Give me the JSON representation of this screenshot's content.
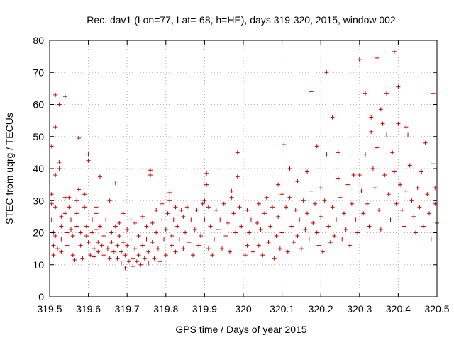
{
  "chart_data": {
    "type": "scatter",
    "title": "Rec. dav1 (Lon=77, Lat=-68, h=HE), days 319-320, 2015, window 002",
    "xlabel": "GPS time / Days of year 2015",
    "ylabel": "STEC from uqrg / TECUs",
    "xlim": [
      319.5,
      320.5
    ],
    "ylim": [
      0,
      80
    ],
    "x_ticks": [
      "319.5",
      "319.6",
      "319.7",
      "319.8",
      "319.9",
      "320",
      "320.1",
      "320.2",
      "320.3",
      "320.4",
      "320.5"
    ],
    "y_ticks": [
      "0",
      "10",
      "20",
      "30",
      "40",
      "50",
      "60",
      "70",
      "80"
    ],
    "grid": true,
    "marker": "+",
    "color": "#cc0000",
    "series": [
      {
        "points": [
          [
            319.505,
            47
          ],
          [
            319.505,
            32
          ],
          [
            319.505,
            29
          ],
          [
            319.505,
            24
          ],
          [
            319.51,
            20
          ],
          [
            319.51,
            16
          ],
          [
            319.51,
            13
          ],
          [
            319.515,
            63
          ],
          [
            319.515,
            53
          ],
          [
            319.515,
            38
          ],
          [
            319.515,
            28
          ],
          [
            319.515,
            19
          ],
          [
            319.52,
            15
          ],
          [
            319.525,
            60
          ],
          [
            319.525,
            42
          ],
          [
            319.525,
            40
          ],
          [
            319.53,
            25
          ],
          [
            319.53,
            22
          ],
          [
            319.53,
            18
          ],
          [
            319.53,
            14
          ],
          [
            319.54,
            62.5
          ],
          [
            319.54,
            31
          ],
          [
            319.54,
            26
          ],
          [
            319.545,
            20
          ],
          [
            319.545,
            16
          ],
          [
            319.55,
            31
          ],
          [
            319.55,
            28
          ],
          [
            319.555,
            24
          ],
          [
            319.555,
            21
          ],
          [
            319.56,
            19
          ],
          [
            319.56,
            13
          ],
          [
            319.565,
            11.5
          ],
          [
            319.57,
            30
          ],
          [
            319.57,
            26
          ],
          [
            319.57,
            22
          ],
          [
            319.575,
            49.5
          ],
          [
            319.575,
            33.5
          ],
          [
            319.58,
            20
          ],
          [
            319.58,
            16
          ],
          [
            319.585,
            12
          ],
          [
            319.59,
            32
          ],
          [
            319.59,
            28
          ],
          [
            319.595,
            22
          ],
          [
            319.595,
            19
          ],
          [
            319.6,
            44.5
          ],
          [
            319.6,
            42.5
          ],
          [
            319.6,
            17
          ],
          [
            319.605,
            13
          ],
          [
            319.61,
            24
          ],
          [
            319.61,
            20
          ],
          [
            319.615,
            15
          ],
          [
            319.615,
            12.5
          ],
          [
            319.62,
            28
          ],
          [
            319.62,
            26
          ],
          [
            319.62,
            21
          ],
          [
            319.625,
            17
          ],
          [
            319.625,
            14
          ],
          [
            319.63,
            37.5
          ],
          [
            319.63,
            22
          ],
          [
            319.635,
            16
          ],
          [
            319.64,
            19
          ],
          [
            319.64,
            13
          ],
          [
            319.645,
            24
          ],
          [
            319.65,
            15
          ],
          [
            319.655,
            12
          ],
          [
            319.655,
            30
          ],
          [
            319.66,
            20
          ],
          [
            319.66,
            17
          ],
          [
            319.665,
            14
          ],
          [
            319.67,
            35.5
          ],
          [
            319.67,
            22
          ],
          [
            319.675,
            16
          ],
          [
            319.675,
            12
          ],
          [
            319.68,
            23
          ],
          [
            319.68,
            19
          ],
          [
            319.685,
            14
          ],
          [
            319.685,
            10.5
          ],
          [
            319.69,
            26
          ],
          [
            319.69,
            17
          ],
          [
            319.695,
            13
          ],
          [
            319.695,
            9
          ],
          [
            319.7,
            21
          ],
          [
            319.7,
            16
          ],
          [
            319.705,
            11
          ],
          [
            319.71,
            24
          ],
          [
            319.71,
            18
          ],
          [
            319.715,
            12
          ],
          [
            319.715,
            9.5
          ],
          [
            319.72,
            23
          ],
          [
            319.72,
            15
          ],
          [
            319.725,
            11
          ],
          [
            319.73,
            19
          ],
          [
            319.73,
            13
          ],
          [
            319.735,
            10
          ],
          [
            319.74,
            25
          ],
          [
            319.74,
            16
          ],
          [
            319.745,
            12
          ],
          [
            319.75,
            22
          ],
          [
            319.75,
            18
          ],
          [
            319.755,
            14
          ],
          [
            319.755,
            10.5
          ],
          [
            319.76,
            39.5
          ],
          [
            319.76,
            38
          ],
          [
            319.765,
            23
          ],
          [
            319.765,
            17
          ],
          [
            319.77,
            12
          ],
          [
            319.775,
            27
          ],
          [
            319.775,
            20
          ],
          [
            319.78,
            15
          ],
          [
            319.785,
            11
          ],
          [
            319.79,
            29
          ],
          [
            319.79,
            24
          ],
          [
            319.795,
            18
          ],
          [
            319.8,
            13
          ],
          [
            319.8,
            21
          ],
          [
            319.805,
            26
          ],
          [
            319.81,
            32.5
          ],
          [
            319.81,
            30
          ],
          [
            319.815,
            19
          ],
          [
            319.815,
            16
          ],
          [
            319.82,
            24
          ],
          [
            319.825,
            28
          ],
          [
            319.825,
            14
          ],
          [
            319.83,
            22
          ],
          [
            319.835,
            18
          ],
          [
            319.84,
            27
          ],
          [
            319.845,
            25
          ],
          [
            319.845,
            15
          ],
          [
            319.85,
            20
          ],
          [
            319.855,
            28
          ],
          [
            319.86,
            17
          ],
          [
            319.865,
            24
          ],
          [
            319.87,
            13
          ],
          [
            319.875,
            21
          ],
          [
            319.88,
            27
          ],
          [
            319.885,
            16
          ],
          [
            319.89,
            19
          ],
          [
            319.895,
            29
          ],
          [
            319.9,
            30
          ],
          [
            319.9,
            24
          ],
          [
            319.905,
            38.5
          ],
          [
            319.905,
            35
          ],
          [
            319.91,
            28
          ],
          [
            319.91,
            15
          ],
          [
            319.915,
            22
          ],
          [
            319.92,
            13
          ],
          [
            319.925,
            18
          ],
          [
            319.93,
            27
          ],
          [
            319.935,
            21
          ],
          [
            319.94,
            24
          ],
          [
            319.945,
            15
          ],
          [
            319.95,
            29
          ],
          [
            319.955,
            19
          ],
          [
            319.96,
            23
          ],
          [
            319.965,
            14
          ],
          [
            319.97,
            33
          ],
          [
            319.97,
            31
          ],
          [
            319.975,
            26
          ],
          [
            319.98,
            20
          ],
          [
            319.985,
            45
          ],
          [
            319.985,
            37.5
          ],
          [
            319.99,
            28
          ],
          [
            319.995,
            22
          ],
          [
            320.005,
            13
          ],
          [
            320.01,
            27
          ],
          [
            320.01,
            16
          ],
          [
            320.015,
            20
          ],
          [
            320.02,
            24
          ],
          [
            320.025,
            14
          ],
          [
            320.03,
            18
          ],
          [
            320.035,
            23
          ],
          [
            320.04,
            29
          ],
          [
            320.04,
            16
          ],
          [
            320.045,
            21
          ],
          [
            320.05,
            13
          ],
          [
            320.055,
            26
          ],
          [
            320.06,
            31
          ],
          [
            320.065,
            17
          ],
          [
            320.07,
            22
          ],
          [
            320.075,
            28
          ],
          [
            320.08,
            12
          ],
          [
            320.085,
            19
          ],
          [
            320.09,
            35
          ],
          [
            320.09,
            25
          ],
          [
            320.095,
            15
          ],
          [
            320.1,
            32
          ],
          [
            320.1,
            20
          ],
          [
            320.105,
            47.5
          ],
          [
            320.11,
            28
          ],
          [
            320.115,
            14
          ],
          [
            320.12,
            40
          ],
          [
            320.12,
            31
          ],
          [
            320.125,
            22
          ],
          [
            320.13,
            17
          ],
          [
            320.135,
            27
          ],
          [
            320.14,
            36
          ],
          [
            320.14,
            19
          ],
          [
            320.145,
            24
          ],
          [
            320.15,
            15
          ],
          [
            320.155,
            30
          ],
          [
            320.16,
            21
          ],
          [
            320.165,
            39
          ],
          [
            320.165,
            26
          ],
          [
            320.17,
            18
          ],
          [
            320.175,
            64
          ],
          [
            320.175,
            33
          ],
          [
            320.18,
            23
          ],
          [
            320.185,
            29
          ],
          [
            320.19,
            47
          ],
          [
            320.19,
            20
          ],
          [
            320.195,
            16
          ],
          [
            320.2,
            34
          ],
          [
            320.2,
            25
          ],
          [
            320.205,
            14
          ],
          [
            320.21,
            30
          ],
          [
            320.215,
            70
          ],
          [
            320.215,
            44.5
          ],
          [
            320.22,
            22
          ],
          [
            320.225,
            17
          ],
          [
            320.23,
            56
          ],
          [
            320.23,
            28
          ],
          [
            320.235,
            19
          ],
          [
            320.24,
            24
          ],
          [
            320.245,
            45
          ],
          [
            320.245,
            37
          ],
          [
            320.25,
            31
          ],
          [
            320.255,
            18
          ],
          [
            320.26,
            26
          ],
          [
            320.265,
            21
          ],
          [
            320.27,
            35
          ],
          [
            320.275,
            16
          ],
          [
            320.28,
            29
          ],
          [
            320.285,
            38
          ],
          [
            320.29,
            24
          ],
          [
            320.295,
            20
          ],
          [
            320.3,
            74
          ],
          [
            320.3,
            38
          ],
          [
            320.305,
            33
          ],
          [
            320.31,
            26
          ],
          [
            320.315,
            63.5
          ],
          [
            320.315,
            44.5
          ],
          [
            320.32,
            29
          ],
          [
            320.325,
            22
          ],
          [
            320.33,
            56
          ],
          [
            320.33,
            51.5
          ],
          [
            320.335,
            40
          ],
          [
            320.34,
            34
          ],
          [
            320.345,
            74.5
          ],
          [
            320.345,
            46.5
          ],
          [
            320.35,
            27
          ],
          [
            320.355,
            58.5
          ],
          [
            320.355,
            21
          ],
          [
            320.36,
            54
          ],
          [
            320.365,
            38
          ],
          [
            320.37,
            63.5
          ],
          [
            320.37,
            50.5
          ],
          [
            320.375,
            32
          ],
          [
            320.38,
            24
          ],
          [
            320.385,
            45
          ],
          [
            320.39,
            76.5
          ],
          [
            320.39,
            39
          ],
          [
            320.395,
            29
          ],
          [
            320.4,
            65.5
          ],
          [
            320.4,
            54
          ],
          [
            320.405,
            35
          ],
          [
            320.41,
            27
          ],
          [
            320.415,
            22
          ],
          [
            320.42,
            53
          ],
          [
            320.42,
            33
          ],
          [
            320.425,
            50.5
          ],
          [
            320.43,
            41
          ],
          [
            320.435,
            30
          ],
          [
            320.44,
            25
          ],
          [
            320.445,
            20
          ],
          [
            320.45,
            34
          ],
          [
            320.455,
            28
          ],
          [
            320.46,
            39
          ],
          [
            320.465,
            22
          ],
          [
            320.47,
            48
          ],
          [
            320.475,
            32
          ],
          [
            320.48,
            26
          ],
          [
            320.485,
            18
          ],
          [
            320.49,
            63.5
          ],
          [
            320.49,
            41.5
          ],
          [
            320.495,
            34
          ],
          [
            320.495,
            29
          ],
          [
            320.5,
            23
          ]
        ]
      }
    ]
  }
}
